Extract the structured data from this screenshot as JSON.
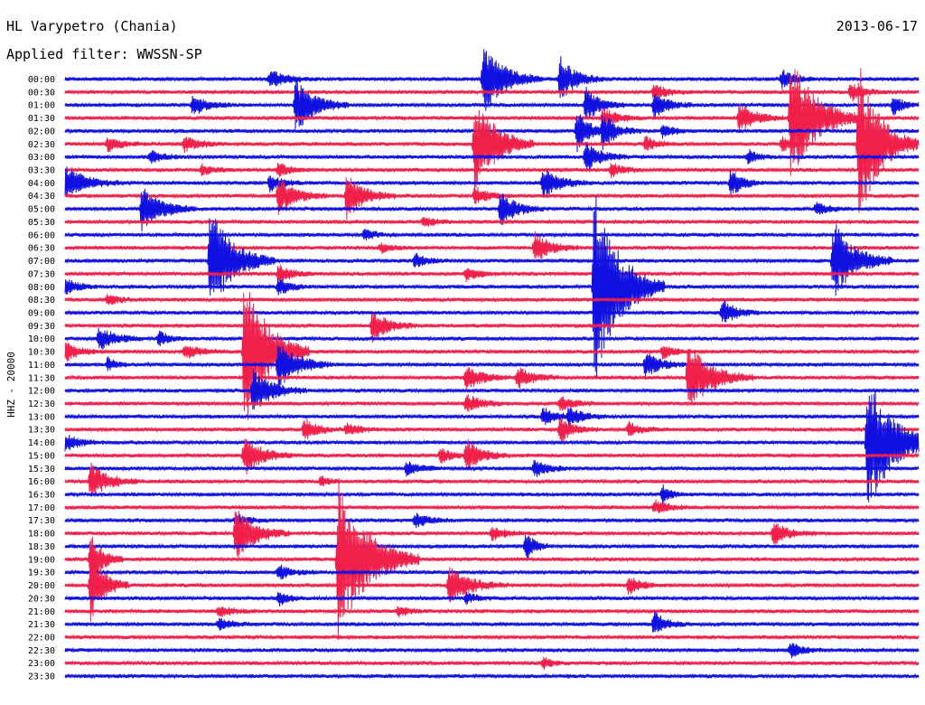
{
  "header": {
    "station": "HL Varypetro (Chania)",
    "date": "2013-06-17",
    "filter": "Applied filter: WWSSN-SP",
    "channel_label": "HHZ - 20000"
  },
  "colors": {
    "trace_a": "#1010e0",
    "trace_b": "#f0204a",
    "background": "#ffffff",
    "text": "#000000"
  },
  "chart_data": {
    "type": "line",
    "title": "",
    "xlabel": "",
    "ylabel": "HHZ - 20000",
    "grid": false,
    "rows": [
      {
        "time": "00:00",
        "events": [
          [
            0.24,
            10,
            18
          ],
          [
            0.49,
            40,
            22
          ],
          [
            0.58,
            25,
            16
          ],
          [
            0.84,
            10,
            12
          ]
        ]
      },
      {
        "time": "00:30",
        "events": [
          [
            0.69,
            8,
            14
          ],
          [
            0.92,
            10,
            14
          ]
        ]
      },
      {
        "time": "01:00",
        "events": [
          [
            0.15,
            12,
            14
          ],
          [
            0.27,
            30,
            20
          ],
          [
            0.61,
            20,
            14
          ],
          [
            0.69,
            14,
            14
          ],
          [
            0.97,
            12,
            10
          ]
        ]
      },
      {
        "time": "01:30",
        "events": [
          [
            0.63,
            12,
            14
          ],
          [
            0.79,
            18,
            16
          ],
          [
            0.85,
            70,
            26
          ]
        ]
      },
      {
        "time": "02:00",
        "events": [
          [
            0.6,
            22,
            14
          ],
          [
            0.63,
            18,
            14
          ],
          [
            0.7,
            8,
            12
          ]
        ]
      },
      {
        "time": "02:30",
        "events": [
          [
            0.05,
            8,
            14
          ],
          [
            0.14,
            8,
            16
          ],
          [
            0.48,
            55,
            22
          ],
          [
            0.68,
            8,
            12
          ],
          [
            0.84,
            8,
            12
          ],
          [
            0.93,
            90,
            22
          ]
        ]
      },
      {
        "time": "03:00",
        "events": [
          [
            0.1,
            8,
            12
          ],
          [
            0.61,
            16,
            16
          ],
          [
            0.8,
            8,
            10
          ]
        ]
      },
      {
        "time": "03:30",
        "events": [
          [
            0.16,
            6,
            12
          ],
          [
            0.25,
            8,
            12
          ],
          [
            0.64,
            8,
            12
          ]
        ]
      },
      {
        "time": "04:00",
        "events": [
          [
            0.0,
            20,
            20
          ],
          [
            0.24,
            10,
            12
          ],
          [
            0.56,
            16,
            18
          ],
          [
            0.78,
            16,
            12
          ]
        ]
      },
      {
        "time": "04:30",
        "events": [
          [
            0.25,
            20,
            18
          ],
          [
            0.33,
            26,
            18
          ],
          [
            0.48,
            10,
            14
          ]
        ]
      },
      {
        "time": "05:00",
        "events": [
          [
            0.09,
            25,
            20
          ],
          [
            0.51,
            20,
            16
          ],
          [
            0.88,
            8,
            12
          ]
        ]
      },
      {
        "time": "05:30",
        "events": [
          [
            0.42,
            6,
            12
          ]
        ]
      },
      {
        "time": "06:00",
        "events": [
          [
            0.35,
            6,
            12
          ]
        ]
      },
      {
        "time": "06:30",
        "events": [
          [
            0.55,
            18,
            16
          ],
          [
            0.37,
            6,
            10
          ]
        ]
      },
      {
        "time": "07:00",
        "events": [
          [
            0.17,
            60,
            24
          ],
          [
            0.41,
            8,
            12
          ],
          [
            0.9,
            45,
            22
          ]
        ]
      },
      {
        "time": "07:30",
        "events": [
          [
            0.25,
            10,
            14
          ],
          [
            0.47,
            8,
            12
          ]
        ]
      },
      {
        "time": "08:00",
        "events": [
          [
            0.0,
            10,
            12
          ],
          [
            0.62,
            110,
            26
          ],
          [
            0.25,
            10,
            12
          ]
        ]
      },
      {
        "time": "08:30",
        "events": [
          [
            0.05,
            6,
            12
          ]
        ]
      },
      {
        "time": "09:00",
        "events": [
          [
            0.77,
            14,
            14
          ]
        ]
      },
      {
        "time": "09:30",
        "events": [
          [
            0.36,
            18,
            16
          ]
        ]
      },
      {
        "time": "10:00",
        "events": [
          [
            0.04,
            14,
            16
          ],
          [
            0.11,
            8,
            12
          ]
        ]
      },
      {
        "time": "10:30",
        "events": [
          [
            0.0,
            12,
            14
          ],
          [
            0.14,
            8,
            16
          ],
          [
            0.21,
            90,
            24
          ],
          [
            0.7,
            8,
            12
          ]
        ]
      },
      {
        "time": "11:00",
        "events": [
          [
            0.25,
            28,
            20
          ],
          [
            0.05,
            8,
            8
          ],
          [
            0.68,
            14,
            16
          ]
        ]
      },
      {
        "time": "11:30",
        "events": [
          [
            0.47,
            14,
            16
          ],
          [
            0.53,
            12,
            16
          ],
          [
            0.73,
            38,
            24
          ]
        ]
      },
      {
        "time": "12:00",
        "events": [
          [
            0.22,
            24,
            20
          ]
        ]
      },
      {
        "time": "12:30",
        "events": [
          [
            0.47,
            10,
            16
          ],
          [
            0.58,
            8,
            14
          ]
        ]
      },
      {
        "time": "13:00",
        "events": [
          [
            0.56,
            10,
            14
          ],
          [
            0.59,
            10,
            14
          ]
        ]
      },
      {
        "time": "13:30",
        "events": [
          [
            0.28,
            12,
            14
          ],
          [
            0.33,
            8,
            12
          ],
          [
            0.58,
            14,
            14
          ],
          [
            0.66,
            8,
            12
          ]
        ]
      },
      {
        "time": "14:00",
        "events": [
          [
            0.0,
            10,
            14
          ],
          [
            0.94,
            80,
            26
          ]
        ]
      },
      {
        "time": "15:00",
        "events": [
          [
            0.21,
            22,
            18
          ],
          [
            0.44,
            8,
            12
          ],
          [
            0.47,
            18,
            16
          ]
        ]
      },
      {
        "time": "15:30",
        "events": [
          [
            0.4,
            8,
            14
          ],
          [
            0.55,
            10,
            14
          ]
        ]
      },
      {
        "time": "16:00",
        "events": [
          [
            0.03,
            20,
            18
          ],
          [
            0.3,
            6,
            8
          ]
        ]
      },
      {
        "time": "16:30",
        "events": [
          [
            0.7,
            10,
            8
          ]
        ]
      },
      {
        "time": "17:00",
        "events": [
          [
            0.69,
            8,
            14
          ]
        ]
      },
      {
        "time": "17:30",
        "events": [
          [
            0.2,
            8,
            12
          ],
          [
            0.41,
            8,
            14
          ]
        ]
      },
      {
        "time": "18:00",
        "events": [
          [
            0.2,
            30,
            20
          ],
          [
            0.5,
            8,
            14
          ],
          [
            0.83,
            12,
            16
          ]
        ]
      },
      {
        "time": "18:30",
        "events": [
          [
            0.54,
            18,
            8
          ]
        ]
      },
      {
        "time": "19:00",
        "events": [
          [
            0.32,
            90,
            30
          ],
          [
            0.03,
            30,
            12
          ]
        ]
      },
      {
        "time": "19:30",
        "events": [
          [
            0.25,
            8,
            14
          ]
        ]
      },
      {
        "time": "20:00",
        "events": [
          [
            0.03,
            40,
            14
          ],
          [
            0.45,
            20,
            22
          ],
          [
            0.66,
            10,
            14
          ]
        ]
      },
      {
        "time": "20:30",
        "events": [
          [
            0.25,
            8,
            10
          ],
          [
            0.47,
            6,
            10
          ]
        ]
      },
      {
        "time": "21:00",
        "events": [
          [
            0.18,
            6,
            14
          ],
          [
            0.39,
            6,
            12
          ]
        ]
      },
      {
        "time": "21:30",
        "events": [
          [
            0.18,
            6,
            14
          ],
          [
            0.69,
            14,
            12
          ]
        ]
      },
      {
        "time": "22:00",
        "events": []
      },
      {
        "time": "22:30",
        "events": [
          [
            0.85,
            8,
            14
          ]
        ]
      },
      {
        "time": "23:00",
        "events": [
          [
            0.56,
            6,
            10
          ]
        ]
      },
      {
        "time": "23:30",
        "events": []
      }
    ]
  }
}
